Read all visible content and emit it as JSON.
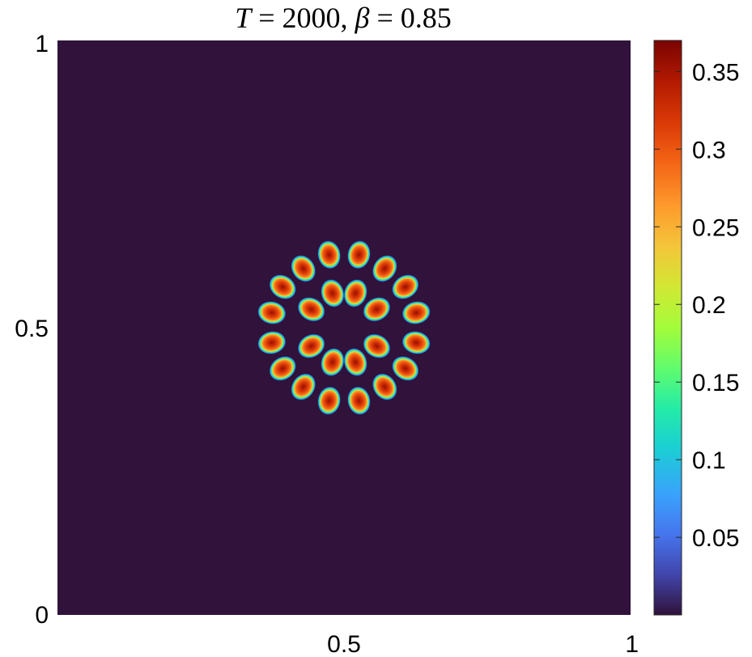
{
  "chart_data": {
    "type": "heatmap",
    "title": {
      "sym_T": "T",
      "eq1": " = 2000,  ",
      "sym_beta": "β",
      "eq2": " = 0.85"
    },
    "xlabel": "",
    "ylabel": "",
    "xlim": [
      0,
      1
    ],
    "ylim": [
      0,
      1
    ],
    "x_ticks": [
      {
        "value": 0.5,
        "label": "0.5"
      },
      {
        "value": 1,
        "label": "1"
      }
    ],
    "y_ticks": [
      {
        "value": 0,
        "label": "0"
      },
      {
        "value": 0.5,
        "label": "0.5"
      },
      {
        "value": 1,
        "label": "1"
      }
    ],
    "colorbar": {
      "colormap": "turbo",
      "range": [
        0,
        0.37
      ],
      "ticks": [
        {
          "value": 0.05,
          "label": "0.05"
        },
        {
          "value": 0.1,
          "label": "0.1"
        },
        {
          "value": 0.15,
          "label": "0.15"
        },
        {
          "value": 0.2,
          "label": "0.2"
        },
        {
          "value": 0.25,
          "label": "0.25"
        },
        {
          "value": 0.3,
          "label": "0.3"
        },
        {
          "value": 0.35,
          "label": "0.35"
        }
      ]
    },
    "background_color": "#30123b",
    "peak_value": 0.37,
    "spots": [
      {
        "ring": "outer",
        "x": 0.526,
        "y": 0.627
      },
      {
        "ring": "outer",
        "x": 0.571,
        "y": 0.603
      },
      {
        "ring": "outer",
        "x": 0.607,
        "y": 0.571
      },
      {
        "ring": "outer",
        "x": 0.626,
        "y": 0.526
      },
      {
        "ring": "outer",
        "x": 0.626,
        "y": 0.474
      },
      {
        "ring": "outer",
        "x": 0.607,
        "y": 0.429
      },
      {
        "ring": "outer",
        "x": 0.571,
        "y": 0.397
      },
      {
        "ring": "outer",
        "x": 0.526,
        "y": 0.373
      },
      {
        "ring": "outer",
        "x": 0.474,
        "y": 0.373
      },
      {
        "ring": "outer",
        "x": 0.429,
        "y": 0.397
      },
      {
        "ring": "outer",
        "x": 0.393,
        "y": 0.429
      },
      {
        "ring": "outer",
        "x": 0.374,
        "y": 0.474
      },
      {
        "ring": "outer",
        "x": 0.374,
        "y": 0.526
      },
      {
        "ring": "outer",
        "x": 0.393,
        "y": 0.571
      },
      {
        "ring": "outer",
        "x": 0.429,
        "y": 0.603
      },
      {
        "ring": "outer",
        "x": 0.474,
        "y": 0.627
      },
      {
        "ring": "inner",
        "x": 0.52,
        "y": 0.56
      },
      {
        "ring": "inner",
        "x": 0.557,
        "y": 0.532
      },
      {
        "ring": "inner",
        "x": 0.557,
        "y": 0.468
      },
      {
        "ring": "inner",
        "x": 0.52,
        "y": 0.44
      },
      {
        "ring": "inner",
        "x": 0.48,
        "y": 0.44
      },
      {
        "ring": "inner",
        "x": 0.443,
        "y": 0.468
      },
      {
        "ring": "inner",
        "x": 0.443,
        "y": 0.532
      },
      {
        "ring": "inner",
        "x": 0.48,
        "y": 0.56
      }
    ]
  }
}
